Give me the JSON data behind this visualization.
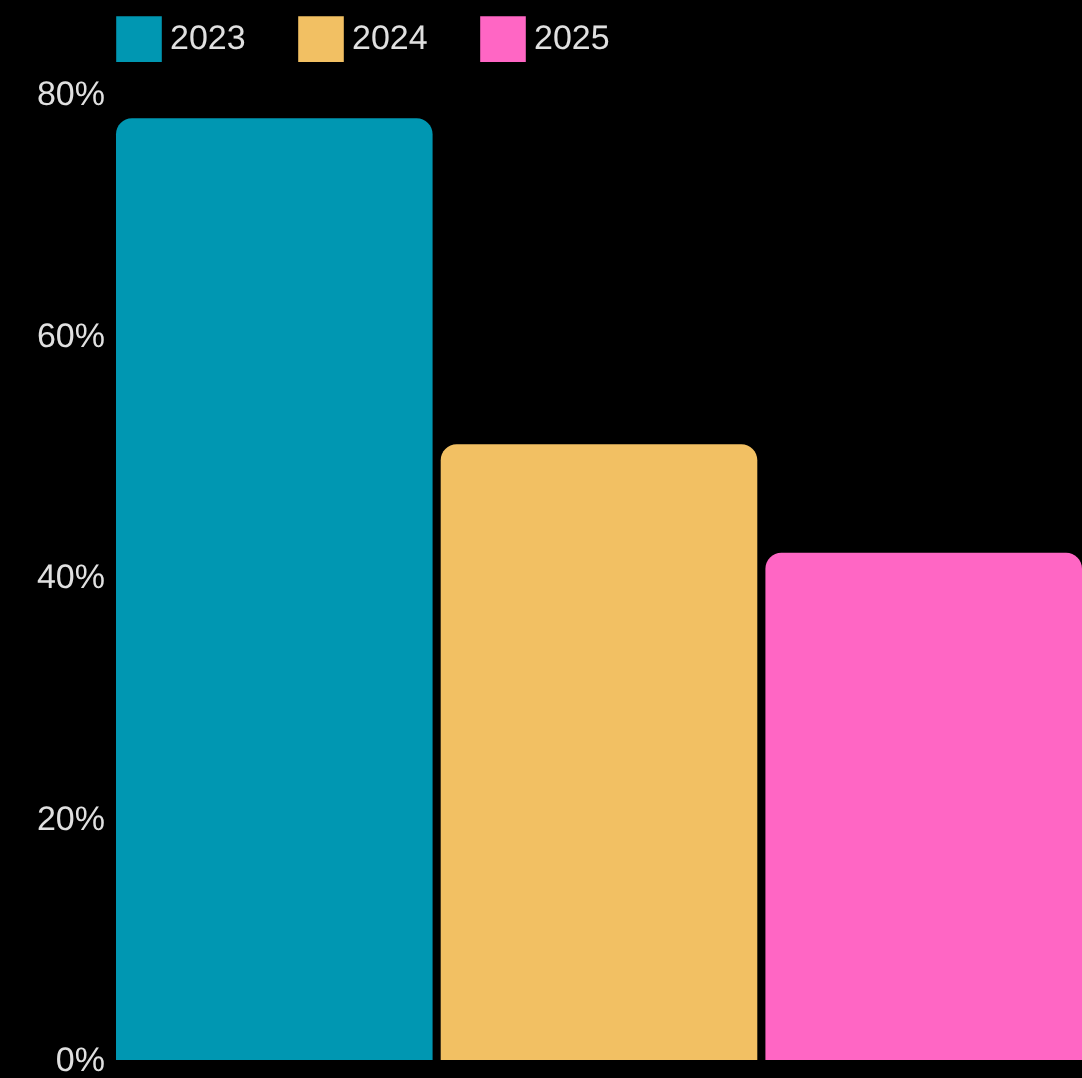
{
  "chart_data": {
    "type": "bar",
    "categories": [
      null
    ],
    "series": [
      {
        "name": "2023",
        "color": "#0097b2",
        "values": [
          78
        ]
      },
      {
        "name": "2024",
        "color": "#f2c063",
        "values": [
          51
        ]
      },
      {
        "name": "2025",
        "color": "#ff66c4",
        "values": [
          42
        ]
      }
    ],
    "ylim": [
      0,
      80
    ],
    "yticks": [
      {
        "value": 0,
        "label": "0%"
      },
      {
        "value": 20,
        "label": "20%"
      },
      {
        "value": 40,
        "label": "40%"
      },
      {
        "value": 60,
        "label": "60%"
      },
      {
        "value": 80,
        "label": "80%"
      }
    ],
    "grid": false,
    "legend": "top",
    "tick_labels": "y"
  }
}
